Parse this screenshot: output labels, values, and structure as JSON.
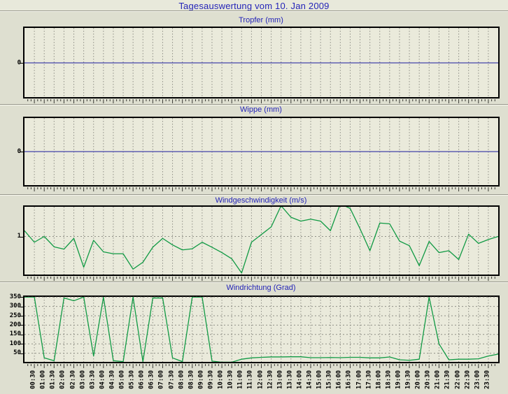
{
  "page": {
    "title": "Tagesauswertung vom 10. Jan 2009"
  },
  "colors": {
    "page_bg": "#dedfd0",
    "plot_bg": "#eaeadb",
    "heading_blue": "#2424b8",
    "zero_line_blue": "#4343aa",
    "wind_line_green": "#119a44",
    "grid_gray": "#8f8f86",
    "plot_border": "#000000",
    "tick_color": "#3a3a35"
  },
  "x_axis": {
    "sampling": "30-minute intervals from 00:00 to 24:00, all four panels share this time axis",
    "labels": [
      "00:30",
      "01:00",
      "01:30",
      "02:00",
      "02:30",
      "03:00",
      "03:30",
      "04:00",
      "04:30",
      "05:00",
      "05:30",
      "06:00",
      "06:30",
      "07:00",
      "07:30",
      "08:00",
      "08:30",
      "09:00",
      "09:30",
      "10:00",
      "10:30",
      "11:00",
      "11:30",
      "12:00",
      "12:30",
      "13:00",
      "13:30",
      "14:00",
      "14:30",
      "15:00",
      "15:30",
      "16:00",
      "16:30",
      "17:00",
      "17:30",
      "18:00",
      "18:30",
      "19:00",
      "19:30",
      "20:00",
      "20:30",
      "21:00",
      "21:30",
      "22:00",
      "22:30",
      "23:00",
      "23:30"
    ]
  },
  "chart_data": [
    {
      "type": "line",
      "title": "Tropfer (mm)",
      "constant_value": 0,
      "y_ticks": [
        {
          "label": "0",
          "value": 0
        }
      ],
      "y_gridlines": [],
      "color_key": "zero_line_blue",
      "grid": "vertical dashed every 30 min"
    },
    {
      "type": "line",
      "title": "Wippe (mm)",
      "constant_value": 0,
      "y_ticks": [
        {
          "label": "0",
          "value": 0
        }
      ],
      "y_gridlines": [],
      "color_key": "zero_line_blue",
      "grid": "vertical dashed every 30 min"
    },
    {
      "type": "line",
      "title": "Windgeschwindigkeit (m/s)",
      "ylim": [
        0,
        1.8
      ],
      "y_ticks": [
        {
          "label": "1",
          "value": 1
        }
      ],
      "y_gridlines": [
        1
      ],
      "color_key": "wind_line_green",
      "values": [
        1.15,
        0.85,
        1.0,
        0.73,
        0.67,
        0.95,
        0.2,
        0.9,
        0.6,
        0.55,
        0.55,
        0.15,
        0.33,
        0.72,
        0.95,
        0.78,
        0.65,
        0.68,
        0.85,
        0.72,
        0.58,
        0.42,
        0.05,
        0.85,
        1.05,
        1.25,
        1.8,
        1.5,
        1.4,
        1.45,
        1.4,
        1.15,
        1.85,
        1.73,
        1.2,
        0.63,
        1.35,
        1.33,
        0.88,
        0.76,
        0.24,
        0.87,
        0.58,
        0.63,
        0.4,
        1.06,
        0.82,
        0.92,
        1.0
      ]
    },
    {
      "type": "line",
      "title": "Windrichtung (Grad)",
      "ylim": [
        0,
        360
      ],
      "y_ticks": [
        {
          "label": "350",
          "value": 350
        },
        {
          "label": "300",
          "value": 300
        },
        {
          "label": "250",
          "value": 250
        },
        {
          "label": "200",
          "value": 200
        },
        {
          "label": "150",
          "value": 150
        },
        {
          "label": "100",
          "value": 100
        },
        {
          "label": "50",
          "value": 50
        }
      ],
      "y_gridlines": [
        50,
        100,
        150,
        200,
        250,
        300,
        350
      ],
      "color_key": "wind_line_green",
      "values": [
        350,
        350,
        25,
        10,
        345,
        330,
        350,
        35,
        350,
        10,
        5,
        350,
        5,
        345,
        345,
        25,
        5,
        350,
        350,
        8,
        2,
        2,
        18,
        25,
        28,
        30,
        30,
        31,
        31,
        26,
        26,
        27,
        26,
        28,
        28,
        25,
        25,
        30,
        15,
        12,
        18,
        350,
        100,
        15,
        18,
        18,
        20,
        35,
        45
      ]
    }
  ]
}
